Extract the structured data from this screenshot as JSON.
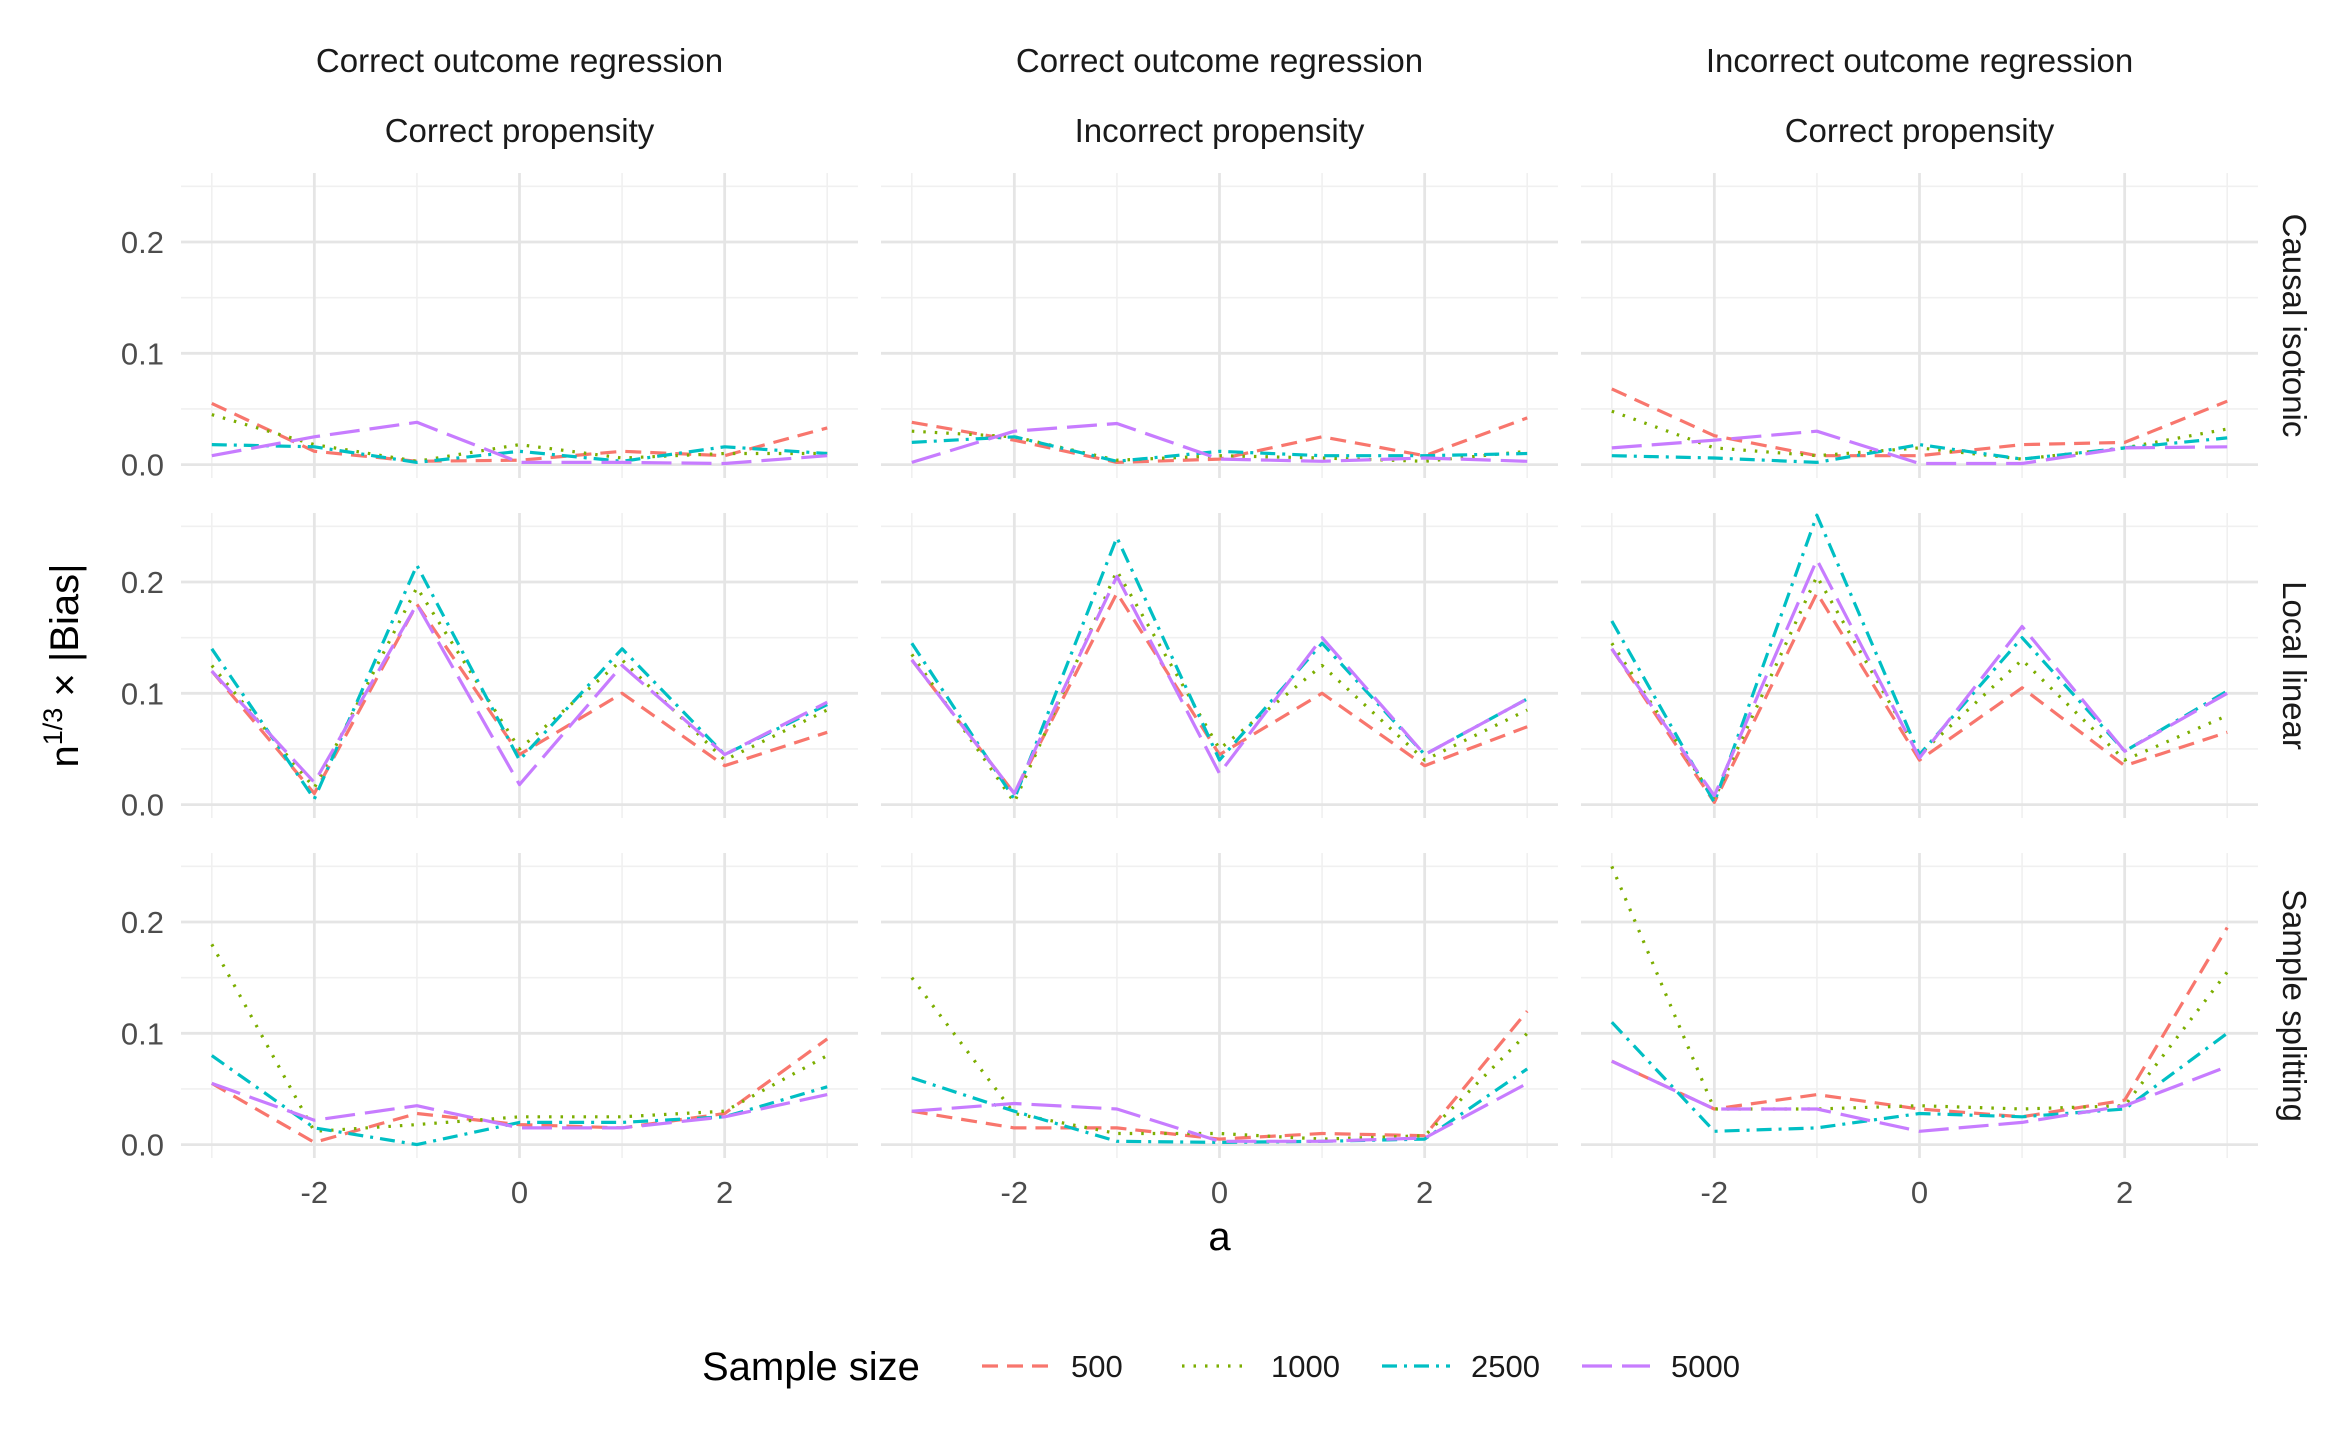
{
  "chart_data": {
    "type": "line",
    "xlabel": "a",
    "ylabel_base": "n",
    "ylabel_sup": "1/3",
    "ylabel_times": "×",
    "ylabel_term": "Bias",
    "legend_title": "Sample size",
    "legend_position": "bottom",
    "x": [
      -3,
      -2,
      -1,
      0,
      1,
      2,
      3
    ],
    "xlim": [
      -3.3,
      3.3
    ],
    "ylim": [
      -0.012,
      0.262
    ],
    "x_ticks": [
      -2,
      0,
      2
    ],
    "x_tick_labels": [
      "-2",
      "0",
      "2"
    ],
    "y_ticks": [
      0.0,
      0.1,
      0.2
    ],
    "y_tick_labels": [
      "0.0",
      "0.1",
      "0.2"
    ],
    "grid": true,
    "series_styles": [
      {
        "name": "500",
        "color": "#F8766D",
        "dash": "short-dash"
      },
      {
        "name": "1000",
        "color": "#7CAE00",
        "dash": "dotted"
      },
      {
        "name": "2500",
        "color": "#00BFC4",
        "dash": "dash-dot"
      },
      {
        "name": "5000",
        "color": "#C77CFF",
        "dash": "long-dash"
      }
    ],
    "columns": [
      {
        "line1": "Correct outcome regression",
        "line2": "Correct propensity"
      },
      {
        "line1": "Correct outcome regression",
        "line2": "Incorrect propensity"
      },
      {
        "line1": "Incorrect outcome regression",
        "line2": "Correct propensity"
      }
    ],
    "rows": [
      "Causal isotonic",
      "Local linear",
      "Sample splitting"
    ],
    "panels": [
      [
        {
          "series": [
            {
              "name": "500",
              "values": [
                0.055,
                0.012,
                0.003,
                0.004,
                0.012,
                0.008,
                0.033
              ]
            },
            {
              "name": "1000",
              "values": [
                0.045,
                0.018,
                0.003,
                0.018,
                0.006,
                0.01,
                0.01
              ]
            },
            {
              "name": "2500",
              "values": [
                0.018,
                0.016,
                0.002,
                0.012,
                0.003,
                0.016,
                0.01
              ]
            },
            {
              "name": "5000",
              "values": [
                0.008,
                0.025,
                0.038,
                0.002,
                0.002,
                0.001,
                0.008
              ]
            }
          ]
        },
        {
          "series": [
            {
              "name": "500",
              "values": [
                0.038,
                0.022,
                0.002,
                0.005,
                0.025,
                0.008,
                0.042
              ]
            },
            {
              "name": "1000",
              "values": [
                0.03,
                0.025,
                0.004,
                0.008,
                0.006,
                0.003,
                0.012
              ]
            },
            {
              "name": "2500",
              "values": [
                0.02,
                0.025,
                0.003,
                0.012,
                0.008,
                0.008,
                0.01
              ]
            },
            {
              "name": "5000",
              "values": [
                0.002,
                0.03,
                0.037,
                0.005,
                0.003,
                0.006,
                0.003
              ]
            }
          ]
        },
        {
          "series": [
            {
              "name": "500",
              "values": [
                0.068,
                0.026,
                0.008,
                0.008,
                0.018,
                0.02,
                0.057
              ]
            },
            {
              "name": "1000",
              "values": [
                0.048,
                0.015,
                0.008,
                0.015,
                0.005,
                0.015,
                0.032
              ]
            },
            {
              "name": "2500",
              "values": [
                0.008,
                0.006,
                0.002,
                0.018,
                0.005,
                0.015,
                0.024
              ]
            },
            {
              "name": "5000",
              "values": [
                0.015,
                0.022,
                0.03,
                0.001,
                0.001,
                0.015,
                0.016
              ]
            }
          ]
        }
      ],
      [
        {
          "series": [
            {
              "name": "500",
              "values": [
                0.12,
                0.01,
                0.18,
                0.045,
                0.1,
                0.035,
                0.065
              ]
            },
            {
              "name": "1000",
              "values": [
                0.125,
                0.015,
                0.195,
                0.05,
                0.13,
                0.04,
                0.085
              ]
            },
            {
              "name": "2500",
              "values": [
                0.14,
                0.005,
                0.215,
                0.04,
                0.14,
                0.045,
                0.09
              ]
            },
            {
              "name": "5000",
              "values": [
                0.12,
                0.02,
                0.18,
                0.018,
                0.125,
                0.045,
                0.092
              ]
            }
          ]
        },
        {
          "series": [
            {
              "name": "500",
              "values": [
                0.13,
                0.01,
                0.19,
                0.045,
                0.1,
                0.035,
                0.07
              ]
            },
            {
              "name": "1000",
              "values": [
                0.135,
                0.002,
                0.21,
                0.05,
                0.125,
                0.04,
                0.085
              ]
            },
            {
              "name": "2500",
              "values": [
                0.145,
                0.005,
                0.24,
                0.04,
                0.145,
                0.045,
                0.095
              ]
            },
            {
              "name": "5000",
              "values": [
                0.13,
                0.01,
                0.205,
                0.028,
                0.15,
                0.045,
                0.095
              ]
            }
          ]
        },
        {
          "series": [
            {
              "name": "500",
              "values": [
                0.14,
                0.002,
                0.19,
                0.04,
                0.105,
                0.035,
                0.065
              ]
            },
            {
              "name": "1000",
              "values": [
                0.145,
                0.005,
                0.205,
                0.045,
                0.13,
                0.04,
                0.08
              ]
            },
            {
              "name": "2500",
              "values": [
                0.165,
                0.002,
                0.26,
                0.045,
                0.15,
                0.048,
                0.102
              ]
            },
            {
              "name": "5000",
              "values": [
                0.14,
                0.008,
                0.22,
                0.042,
                0.16,
                0.048,
                0.1
              ]
            }
          ]
        }
      ],
      [
        {
          "series": [
            {
              "name": "500",
              "values": [
                0.055,
                0.002,
                0.028,
                0.018,
                0.015,
                0.028,
                0.095
              ]
            },
            {
              "name": "1000",
              "values": [
                0.18,
                0.012,
                0.018,
                0.025,
                0.025,
                0.03,
                0.08
              ]
            },
            {
              "name": "2500",
              "values": [
                0.08,
                0.015,
                0.0,
                0.02,
                0.02,
                0.025,
                0.052
              ]
            },
            {
              "name": "5000",
              "values": [
                0.055,
                0.022,
                0.035,
                0.015,
                0.015,
                0.025,
                0.045
              ]
            }
          ]
        },
        {
          "series": [
            {
              "name": "500",
              "values": [
                0.03,
                0.015,
                0.015,
                0.005,
                0.01,
                0.008,
                0.12
              ]
            },
            {
              "name": "1000",
              "values": [
                0.15,
                0.028,
                0.01,
                0.01,
                0.005,
                0.008,
                0.1
              ]
            },
            {
              "name": "2500",
              "values": [
                0.06,
                0.03,
                0.003,
                0.002,
                0.003,
                0.005,
                0.068
              ]
            },
            {
              "name": "5000",
              "values": [
                0.03,
                0.037,
                0.032,
                0.003,
                0.003,
                0.006,
                0.055
              ]
            }
          ]
        },
        {
          "series": [
            {
              "name": "500",
              "values": [
                0.075,
                0.032,
                0.045,
                0.032,
                0.025,
                0.04,
                0.195
              ]
            },
            {
              "name": "1000",
              "values": [
                0.25,
                0.032,
                0.032,
                0.035,
                0.032,
                0.035,
                0.155
              ]
            },
            {
              "name": "2500",
              "values": [
                0.11,
                0.012,
                0.015,
                0.028,
                0.025,
                0.032,
                0.1
              ]
            },
            {
              "name": "5000",
              "values": [
                0.075,
                0.032,
                0.032,
                0.012,
                0.02,
                0.035,
                0.07
              ]
            }
          ]
        }
      ]
    ]
  }
}
